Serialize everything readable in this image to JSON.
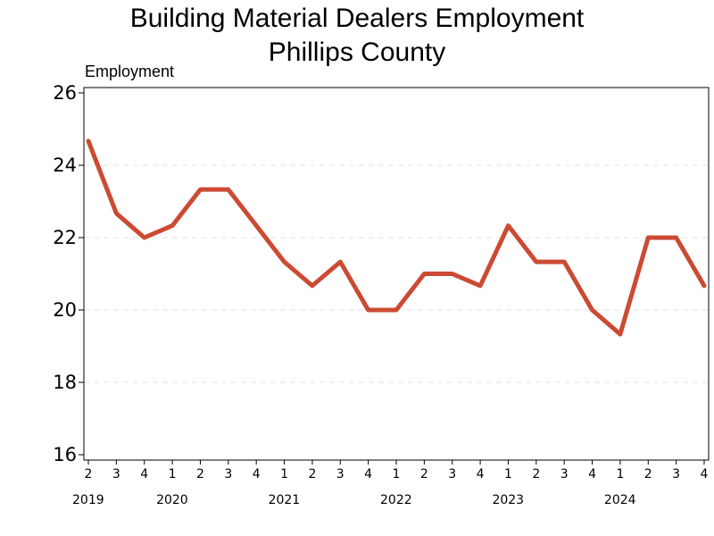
{
  "chart_data": {
    "type": "line",
    "title": [
      "Building Material Dealers Employment",
      "Phillips County"
    ],
    "ylabel": "Employment",
    "ylim": [
      16,
      26
    ],
    "yticks": [
      16,
      18,
      20,
      22,
      24,
      26
    ],
    "grid": "horizontal dashed",
    "x_quarters": [
      "2",
      "3",
      "4",
      "1",
      "2",
      "3",
      "4",
      "1",
      "2",
      "3",
      "4",
      "1",
      "2",
      "3",
      "4",
      "1",
      "2",
      "3",
      "4",
      "1",
      "2",
      "3",
      "4"
    ],
    "x_years": [
      {
        "label": "2019",
        "quarter_index": 0
      },
      {
        "label": "2020",
        "quarter_index": 3
      },
      {
        "label": "2021",
        "quarter_index": 7
      },
      {
        "label": "2022",
        "quarter_index": 11
      },
      {
        "label": "2023",
        "quarter_index": 15
      },
      {
        "label": "2024",
        "quarter_index": 19
      }
    ],
    "series": [
      {
        "color": "#cc4a33",
        "values": [
          24.67,
          22.67,
          22.0,
          22.33,
          23.33,
          23.33,
          22.33,
          21.33,
          20.67,
          21.33,
          20.0,
          20.0,
          21.0,
          21.0,
          20.67,
          22.33,
          21.33,
          21.33,
          20.0,
          19.33,
          22.0,
          22.0,
          20.67
        ]
      }
    ]
  }
}
